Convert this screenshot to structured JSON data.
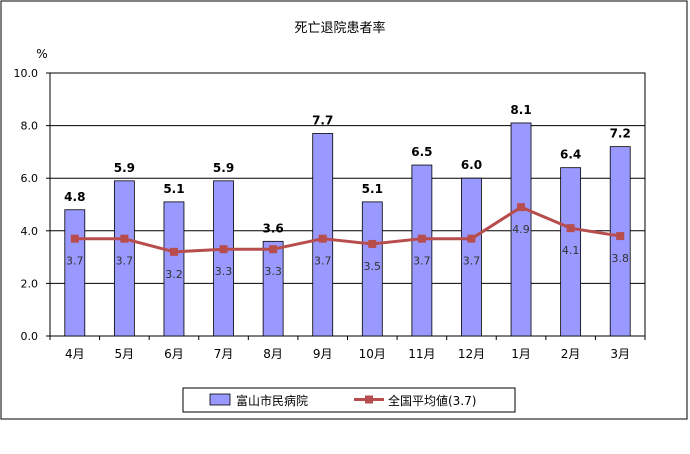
{
  "chart_data": {
    "type": "bar",
    "title": "死亡退院患者率",
    "ylabel": "%",
    "ylim": [
      0,
      10
    ],
    "yticks": [
      "0.0",
      "2.0",
      "4.0",
      "6.0",
      "8.0",
      "10.0"
    ],
    "grid": true,
    "legend_position": "bottom",
    "categories": [
      "4月",
      "5月",
      "6月",
      "7月",
      "8月",
      "9月",
      "10月",
      "11月",
      "12月",
      "1月",
      "2月",
      "3月"
    ],
    "series": [
      {
        "name": "富山市民病院",
        "kind": "bar",
        "color": "#9999ff",
        "values": [
          4.8,
          5.9,
          5.1,
          5.9,
          3.6,
          7.7,
          5.1,
          6.5,
          6.0,
          8.1,
          6.4,
          7.2
        ],
        "labels": [
          "4.8",
          "5.9",
          "5.1",
          "5.9",
          "3.6",
          "7.7",
          "5.1",
          "6.5",
          "6.0",
          "8.1",
          "6.4",
          "7.2"
        ]
      },
      {
        "name": "全国平均値(3.7)",
        "kind": "line",
        "color": "#b84d4d",
        "values": [
          3.7,
          3.7,
          3.2,
          3.3,
          3.3,
          3.7,
          3.5,
          3.7,
          3.7,
          4.9,
          4.1,
          3.8
        ],
        "labels": [
          "3.7",
          "3.7",
          "3.2",
          "3.3",
          "3.3",
          "3.7",
          "3.5",
          "3.7",
          "3.7",
          "4.9",
          "4.1",
          "3.8"
        ]
      }
    ]
  }
}
